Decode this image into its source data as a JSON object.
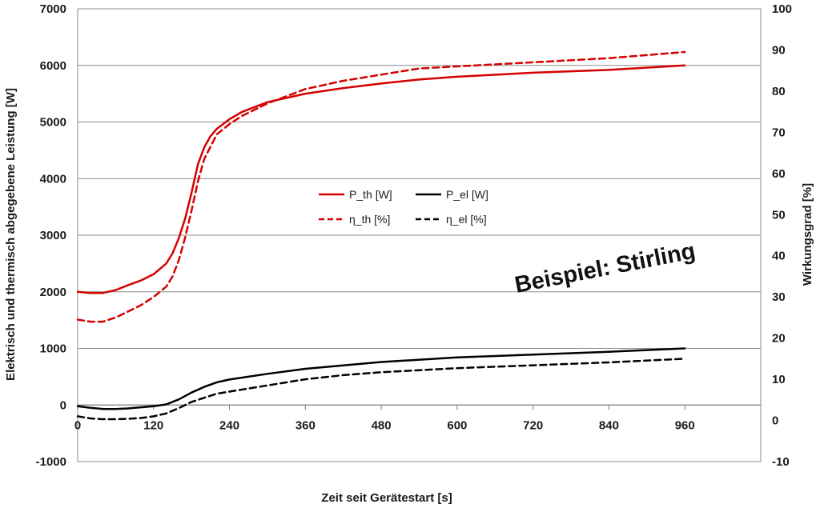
{
  "chart_data": {
    "type": "line",
    "xlabel": "Zeit seit Gerätestart [s]",
    "ylabel_left": "Elektrisch und thermisch abgegebene Leistung [W]",
    "ylabel_right": "Wirkungsgrad [%]",
    "annotation": "Beispiel: Stirling",
    "xlim": [
      0,
      1080
    ],
    "ylim_left": [
      -1000,
      7000
    ],
    "ylim_right": [
      -10,
      100
    ],
    "x_ticks": [
      0,
      120,
      240,
      360,
      480,
      600,
      720,
      840,
      960
    ],
    "y_ticks_left": [
      -1000,
      0,
      1000,
      2000,
      3000,
      4000,
      5000,
      6000,
      7000
    ],
    "y_ticks_right": [
      -10,
      0,
      10,
      20,
      30,
      40,
      50,
      60,
      70,
      80,
      90,
      100
    ],
    "grid": "horizontal",
    "legend_position": "center",
    "series": [
      {
        "name": "P_th [W]",
        "axis": "left",
        "color": "#d40000",
        "dash": "solid",
        "x": [
          0,
          20,
          40,
          60,
          80,
          100,
          120,
          140,
          150,
          160,
          170,
          180,
          190,
          200,
          210,
          220,
          240,
          260,
          300,
          360,
          420,
          480,
          540,
          600,
          720,
          840,
          960
        ],
        "y": [
          2000,
          1980,
          1980,
          2030,
          2120,
          2200,
          2310,
          2500,
          2680,
          2950,
          3300,
          3750,
          4250,
          4550,
          4750,
          4880,
          5050,
          5180,
          5350,
          5500,
          5600,
          5680,
          5750,
          5800,
          5870,
          5920,
          6000
        ]
      },
      {
        "name": "P_el [W]",
        "axis": "left",
        "color": "#000000",
        "dash": "solid",
        "x": [
          0,
          20,
          40,
          60,
          80,
          100,
          120,
          140,
          160,
          180,
          200,
          220,
          240,
          300,
          360,
          480,
          600,
          720,
          840,
          960
        ],
        "y": [
          -20,
          -50,
          -70,
          -70,
          -60,
          -40,
          -20,
          10,
          100,
          220,
          320,
          400,
          450,
          550,
          640,
          760,
          840,
          890,
          940,
          1000
        ]
      },
      {
        "name": "η_th [%]",
        "axis": "right",
        "color": "#d40000",
        "dash": "dashed",
        "x": [
          0,
          20,
          40,
          60,
          80,
          100,
          120,
          140,
          150,
          160,
          170,
          180,
          190,
          200,
          220,
          240,
          260,
          300,
          360,
          420,
          480,
          540,
          600,
          720,
          840,
          960
        ],
        "y": [
          24.5,
          24,
          24,
          25,
          26.5,
          28,
          30,
          32.5,
          35,
          39,
          44.5,
          51,
          58,
          63.5,
          69.5,
          72,
          74,
          77,
          80.5,
          82.5,
          84,
          85.5,
          86,
          87,
          88,
          89.5
        ]
      },
      {
        "name": "η_el [%]",
        "axis": "right",
        "color": "#000000",
        "dash": "dashed",
        "x": [
          0,
          20,
          40,
          60,
          80,
          100,
          120,
          140,
          160,
          180,
          200,
          220,
          240,
          300,
          360,
          420,
          480,
          600,
          720,
          840,
          960
        ],
        "y": [
          1,
          0.5,
          0.3,
          0.3,
          0.4,
          0.6,
          1,
          1.7,
          3,
          4.5,
          5.5,
          6.5,
          7,
          8.5,
          10,
          11,
          11.7,
          12.7,
          13.4,
          14.1,
          15
        ]
      }
    ]
  }
}
